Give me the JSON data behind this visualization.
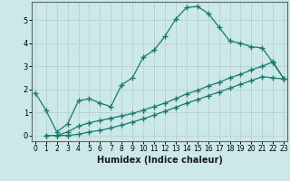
{
  "xlabel": "Humidex (Indice chaleur)",
  "background_color": "#cce8e8",
  "grid_color": "#b8d4d4",
  "line_color": "#1a7a6e",
  "x_max": 23,
  "y_max": 5.8,
  "y_ticks": [
    0,
    1,
    2,
    3,
    4,
    5
  ],
  "line1_x": [
    0,
    1,
    2,
    3,
    4,
    5,
    6,
    7,
    8,
    9,
    10,
    11,
    12,
    13,
    14,
    15,
    16,
    17,
    18,
    19,
    20,
    21,
    22,
    23
  ],
  "line1_y": [
    1.85,
    1.1,
    0.15,
    0.5,
    1.5,
    1.6,
    1.4,
    1.25,
    2.2,
    2.5,
    3.4,
    3.7,
    4.3,
    5.05,
    5.55,
    5.6,
    5.3,
    4.7,
    4.1,
    4.0,
    3.85,
    3.8,
    3.15,
    2.45
  ],
  "line2_x": [
    1,
    2,
    3,
    4,
    5,
    6,
    7,
    8,
    9,
    10,
    11,
    12,
    13,
    14,
    15,
    16,
    17,
    18,
    19,
    20,
    21,
    22,
    23
  ],
  "line2_y": [
    0.0,
    0.0,
    0.15,
    0.4,
    0.55,
    0.65,
    0.75,
    0.85,
    0.95,
    1.1,
    1.25,
    1.4,
    1.6,
    1.8,
    1.95,
    2.15,
    2.3,
    2.5,
    2.65,
    2.85,
    3.0,
    3.2,
    2.45
  ],
  "line3_x": [
    1,
    2,
    3,
    4,
    5,
    6,
    7,
    8,
    9,
    10,
    11,
    12,
    13,
    14,
    15,
    16,
    17,
    18,
    19,
    20,
    21,
    22,
    23
  ],
  "line3_y": [
    0.0,
    0.0,
    0.0,
    0.05,
    0.15,
    0.22,
    0.32,
    0.45,
    0.58,
    0.72,
    0.88,
    1.05,
    1.22,
    1.4,
    1.55,
    1.72,
    1.88,
    2.05,
    2.22,
    2.38,
    2.55,
    2.5,
    2.45
  ]
}
